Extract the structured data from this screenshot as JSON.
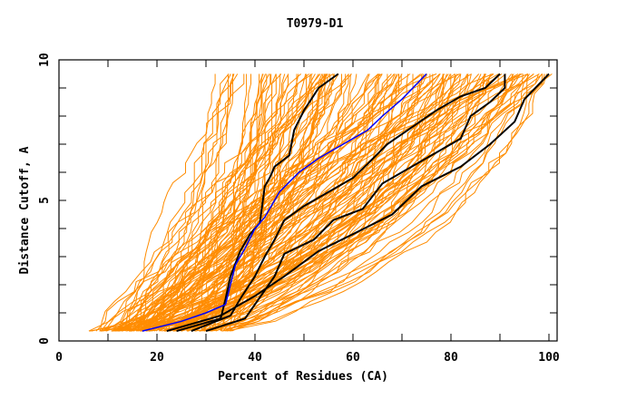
{
  "chart_data": {
    "type": "line",
    "title": "T0979-D1",
    "xlabel": "Percent of Residues (CA)",
    "ylabel": "Distance Cutoff, A",
    "xlim": [
      0,
      100
    ],
    "ylim": [
      0,
      10
    ],
    "x_ticks": [
      "0",
      "20",
      "40",
      "60",
      "80",
      "100"
    ],
    "x_tick_values": [
      0,
      20,
      40,
      60,
      80,
      100
    ],
    "y_ticks": [
      "0",
      "5",
      "10"
    ],
    "y_tick_values": [
      0,
      5,
      10
    ],
    "grid": false,
    "colors": {
      "background_models": "#ff8c00",
      "highlight_black": "#000000",
      "highlight_blue": "#0000ff"
    },
    "series": [
      {
        "name": "black-1",
        "color": "#000000",
        "points": [
          [
            24,
            0.35
          ],
          [
            33,
            0.8
          ],
          [
            34,
            1.5
          ],
          [
            35,
            2.3
          ],
          [
            37,
            3.2
          ],
          [
            39,
            3.8
          ],
          [
            41,
            4.2
          ],
          [
            42,
            5.5
          ],
          [
            43,
            5.8
          ],
          [
            44,
            6.2
          ],
          [
            47,
            6.6
          ],
          [
            48,
            7.5
          ],
          [
            50,
            8.2
          ],
          [
            53,
            9.0
          ],
          [
            57,
            9.5
          ]
        ]
      },
      {
        "name": "black-2",
        "color": "#000000",
        "points": [
          [
            27,
            0.35
          ],
          [
            35,
            0.9
          ],
          [
            37,
            1.5
          ],
          [
            40,
            2.3
          ],
          [
            42,
            3.0
          ],
          [
            44,
            3.6
          ],
          [
            46,
            4.3
          ],
          [
            50,
            4.8
          ],
          [
            55,
            5.3
          ],
          [
            60,
            5.8
          ],
          [
            63,
            6.3
          ],
          [
            67,
            7.0
          ],
          [
            72,
            7.6
          ],
          [
            77,
            8.2
          ],
          [
            82,
            8.7
          ],
          [
            87,
            9.0
          ],
          [
            90,
            9.5
          ]
        ]
      },
      {
        "name": "black-3",
        "color": "#000000",
        "points": [
          [
            30,
            0.35
          ],
          [
            38,
            0.8
          ],
          [
            40,
            1.3
          ],
          [
            44,
            2.3
          ],
          [
            46,
            3.1
          ],
          [
            52,
            3.6
          ],
          [
            56,
            4.3
          ],
          [
            62,
            4.7
          ],
          [
            66,
            5.6
          ],
          [
            72,
            6.2
          ],
          [
            77,
            6.7
          ],
          [
            82,
            7.2
          ],
          [
            84,
            8.0
          ],
          [
            88,
            8.5
          ],
          [
            91,
            9.0
          ],
          [
            91,
            9.5
          ]
        ]
      },
      {
        "name": "black-4",
        "color": "#000000",
        "points": [
          [
            22,
            0.35
          ],
          [
            33,
            0.9
          ],
          [
            40,
            1.6
          ],
          [
            46,
            2.3
          ],
          [
            53,
            3.2
          ],
          [
            60,
            3.8
          ],
          [
            68,
            4.5
          ],
          [
            74,
            5.5
          ],
          [
            82,
            6.2
          ],
          [
            88,
            7.0
          ],
          [
            93,
            7.8
          ],
          [
            95,
            8.6
          ],
          [
            100,
            9.5
          ]
        ]
      },
      {
        "name": "blue",
        "color": "#0000ff",
        "points": [
          [
            17,
            0.35
          ],
          [
            25,
            0.7
          ],
          [
            30,
            1.0
          ],
          [
            34,
            1.3
          ],
          [
            35,
            2.0
          ],
          [
            36,
            2.7
          ],
          [
            38,
            3.3
          ],
          [
            40,
            4.0
          ],
          [
            42,
            4.4
          ],
          [
            45,
            5.3
          ],
          [
            49,
            6.0
          ],
          [
            53,
            6.5
          ],
          [
            58,
            7.0
          ],
          [
            63,
            7.5
          ],
          [
            66,
            8.0
          ],
          [
            70,
            8.6
          ],
          [
            75,
            9.5
          ]
        ]
      }
    ],
    "background_models": {
      "count": 150,
      "color": "#ff8c00",
      "start_x_range": [
        6,
        35
      ],
      "end_x_range": [
        30,
        100
      ],
      "y_range": [
        0.35,
        9.5
      ]
    }
  }
}
